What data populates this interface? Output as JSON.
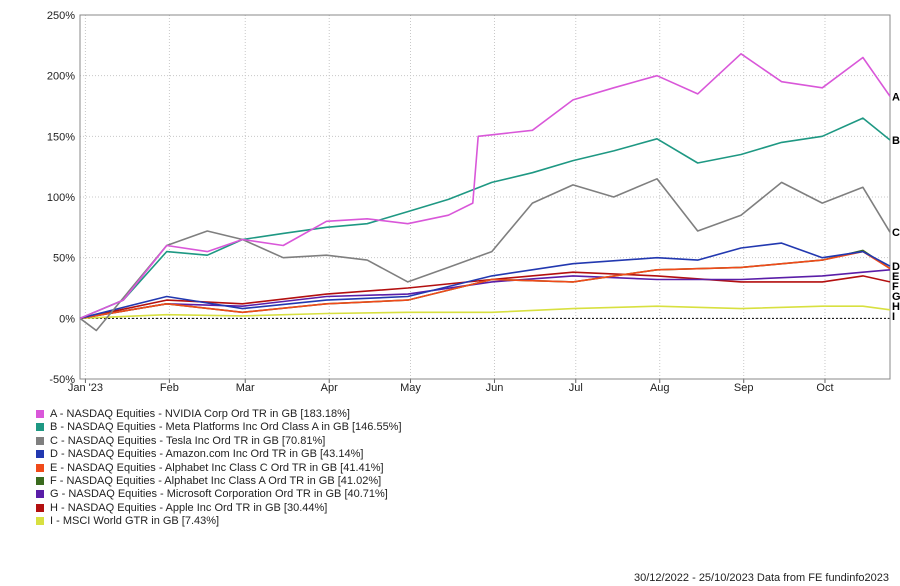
{
  "chart_data": {
    "type": "line",
    "title": "",
    "xlabel": "",
    "ylabel": "",
    "ylim": [
      -50,
      250
    ],
    "y_ticks": [
      "250%",
      "200%",
      "150%",
      "100%",
      "50%",
      "0%",
      "-50%"
    ],
    "y_tick_values": [
      250,
      200,
      150,
      100,
      50,
      0,
      -50
    ],
    "x_ticks": [
      "Jan '23",
      "Feb",
      "Mar",
      "Apr",
      "May",
      "Jun",
      "Jul",
      "Aug",
      "Sep",
      "Oct"
    ],
    "x_tick_dates": [
      "2023-01-01",
      "2023-02-01",
      "2023-03-01",
      "2023-04-01",
      "2023-05-01",
      "2023-06-01",
      "2023-07-01",
      "2023-08-01",
      "2023-09-01",
      "2023-10-01"
    ],
    "x_range": [
      "2022-12-30",
      "2023-10-25"
    ],
    "grid": true,
    "legend_position": "bottom",
    "series": [
      {
        "name": "A - NASDAQ Equities - NVIDIA Corp Ord TR in GB [183.18%]",
        "end_label": "A",
        "color": "#d957d9",
        "x": [
          "2022-12-30",
          "2023-01-15",
          "2023-01-31",
          "2023-02-15",
          "2023-02-28",
          "2023-03-15",
          "2023-03-31",
          "2023-04-15",
          "2023-04-30",
          "2023-05-15",
          "2023-05-24",
          "2023-05-26",
          "2023-06-15",
          "2023-06-30",
          "2023-07-15",
          "2023-07-31",
          "2023-08-15",
          "2023-08-31",
          "2023-09-15",
          "2023-09-30",
          "2023-10-15",
          "2023-10-25"
        ],
        "y": [
          0,
          15,
          60,
          55,
          65,
          60,
          80,
          82,
          78,
          85,
          95,
          150,
          155,
          180,
          190,
          200,
          185,
          218,
          195,
          190,
          215,
          183
        ]
      },
      {
        "name": "B - NASDAQ Equities - Meta Platforms Inc Ord Class A in GB [146.55%]",
        "end_label": "B",
        "color": "#1e9883",
        "x": [
          "2022-12-30",
          "2023-01-15",
          "2023-01-31",
          "2023-02-15",
          "2023-02-28",
          "2023-03-15",
          "2023-03-31",
          "2023-04-15",
          "2023-04-30",
          "2023-05-15",
          "2023-05-31",
          "2023-06-15",
          "2023-06-30",
          "2023-07-15",
          "2023-07-31",
          "2023-08-15",
          "2023-08-31",
          "2023-09-15",
          "2023-09-30",
          "2023-10-15",
          "2023-10-25"
        ],
        "y": [
          0,
          15,
          55,
          52,
          65,
          70,
          75,
          78,
          88,
          98,
          112,
          120,
          130,
          138,
          148,
          128,
          135,
          145,
          150,
          165,
          147
        ]
      },
      {
        "name": "C - NASDAQ Equities - Tesla Inc Ord TR in GB [70.81%]",
        "end_label": "C",
        "color": "#7f7f7f",
        "x": [
          "2022-12-30",
          "2023-01-05",
          "2023-01-31",
          "2023-02-15",
          "2023-02-28",
          "2023-03-15",
          "2023-03-31",
          "2023-04-15",
          "2023-04-30",
          "2023-05-15",
          "2023-05-31",
          "2023-06-15",
          "2023-06-30",
          "2023-07-15",
          "2023-07-31",
          "2023-08-15",
          "2023-08-31",
          "2023-09-15",
          "2023-09-30",
          "2023-10-15",
          "2023-10-25"
        ],
        "y": [
          0,
          -10,
          60,
          72,
          65,
          50,
          52,
          48,
          30,
          42,
          55,
          95,
          110,
          100,
          115,
          72,
          85,
          112,
          95,
          108,
          71
        ]
      },
      {
        "name": "D - NASDAQ Equities - Amazon.com Inc Ord TR in GB [43.14%]",
        "end_label": "D",
        "color": "#2238b0",
        "x": [
          "2022-12-30",
          "2023-01-31",
          "2023-02-28",
          "2023-03-31",
          "2023-04-30",
          "2023-05-31",
          "2023-06-30",
          "2023-07-31",
          "2023-08-15",
          "2023-08-31",
          "2023-09-15",
          "2023-09-30",
          "2023-10-15",
          "2023-10-25"
        ],
        "y": [
          0,
          18,
          8,
          15,
          18,
          35,
          45,
          50,
          48,
          58,
          62,
          50,
          55,
          43
        ]
      },
      {
        "name": "E - NASDAQ Equities - Alphabet Inc Class C Ord TR in GB [41.41%]",
        "end_label": "E",
        "color": "#f04a1a",
        "x": [
          "2022-12-30",
          "2023-01-31",
          "2023-02-28",
          "2023-03-31",
          "2023-04-30",
          "2023-05-31",
          "2023-06-30",
          "2023-07-31",
          "2023-08-31",
          "2023-09-30",
          "2023-10-15",
          "2023-10-25"
        ],
        "y": [
          0,
          12,
          5,
          12,
          15,
          32,
          30,
          40,
          42,
          48,
          55,
          41
        ]
      },
      {
        "name": "F - NASDAQ Equities - Alphabet Inc Class A Ord TR in GB [41.02%]",
        "end_label": "F",
        "color": "#3a6b1e",
        "x": [
          "2022-12-30",
          "2023-01-31",
          "2023-02-28",
          "2023-03-31",
          "2023-04-30",
          "2023-05-31",
          "2023-06-30",
          "2023-07-31",
          "2023-08-31",
          "2023-09-30",
          "2023-10-15",
          "2023-10-25"
        ],
        "y": [
          0,
          12,
          5,
          12,
          15,
          32,
          30,
          40,
          42,
          48,
          56,
          41
        ]
      },
      {
        "name": "G - NASDAQ Equities - Microsoft Corporation Ord TR in GB [40.71%]",
        "end_label": "G",
        "color": "#5a1ea8",
        "x": [
          "2022-12-30",
          "2023-01-31",
          "2023-02-28",
          "2023-03-31",
          "2023-04-30",
          "2023-05-31",
          "2023-06-30",
          "2023-07-31",
          "2023-08-31",
          "2023-09-30",
          "2023-10-15",
          "2023-10-25"
        ],
        "y": [
          0,
          12,
          10,
          18,
          20,
          30,
          35,
          32,
          32,
          35,
          38,
          40
        ]
      },
      {
        "name": "H - NASDAQ Equities - Apple Inc Ord TR in GB [30.44%]",
        "end_label": "H",
        "color": "#b30f0f",
        "x": [
          "2022-12-30",
          "2023-01-31",
          "2023-02-28",
          "2023-03-31",
          "2023-04-30",
          "2023-05-31",
          "2023-06-30",
          "2023-07-31",
          "2023-08-31",
          "2023-09-30",
          "2023-10-15",
          "2023-10-25"
        ],
        "y": [
          0,
          15,
          12,
          20,
          25,
          32,
          38,
          35,
          30,
          30,
          35,
          30
        ]
      },
      {
        "name": "I - MSCI World GTR in GB [7.43%]",
        "end_label": "I",
        "color": "#d8e040",
        "x": [
          "2022-12-30",
          "2023-01-31",
          "2023-02-28",
          "2023-03-31",
          "2023-04-30",
          "2023-05-31",
          "2023-06-30",
          "2023-07-31",
          "2023-08-31",
          "2023-09-30",
          "2023-10-15",
          "2023-10-25"
        ],
        "y": [
          0,
          3,
          2,
          4,
          5,
          5,
          8,
          10,
          8,
          10,
          10,
          7
        ]
      }
    ]
  },
  "footer": {
    "text": "30/12/2022 - 25/10/2023 Data from FE fundinfo2023"
  }
}
